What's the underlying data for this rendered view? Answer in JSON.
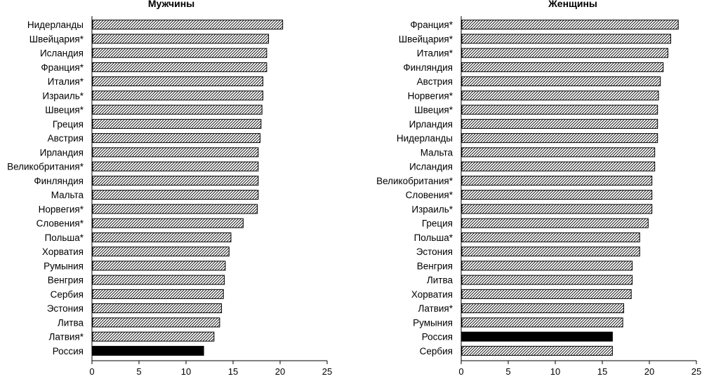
{
  "chart_data": [
    {
      "type": "bar",
      "orientation": "horizontal",
      "title": "Мужчины",
      "xlim": [
        0,
        25
      ],
      "xticks": [
        "0",
        "5",
        "10",
        "15",
        "20",
        "25"
      ],
      "grid": false,
      "categories": [
        "Нидерланды",
        "Швейцария*",
        "Исландия",
        "Франция*",
        "Италия*",
        "Израиль*",
        "Швеция*",
        "Греция",
        "Австрия",
        "Ирландия",
        "Великобритания*",
        "Финляндия",
        "Мальта",
        "Норвегия*",
        "Словения*",
        "Польша*",
        "Хорватия",
        "Румыния",
        "Венгрия",
        "Сербия",
        "Эстония",
        "Литва",
        "Латвия*",
        "Россия"
      ],
      "values": [
        20.2,
        18.7,
        18.5,
        18.5,
        18.1,
        18.1,
        18.0,
        17.9,
        17.8,
        17.6,
        17.6,
        17.6,
        17.6,
        17.5,
        16.0,
        14.7,
        14.5,
        14.1,
        14.0,
        13.9,
        13.7,
        13.5,
        12.9,
        11.8
      ],
      "highlight": "Россия",
      "colors": {
        "bar_fill": "hatched",
        "highlight_fill": "#000000"
      }
    },
    {
      "type": "bar",
      "orientation": "horizontal",
      "title": "Женщины",
      "xlim": [
        0,
        25
      ],
      "xticks": [
        "0",
        "5",
        "10",
        "15",
        "20",
        "25"
      ],
      "grid": false,
      "categories": [
        "Франция*",
        "Швейцария*",
        "Италия*",
        "Финляндия",
        "Австрия",
        "Норвегия*",
        "Швеция*",
        "Ирландия",
        "Нидерланды",
        "Мальта",
        "Исландия",
        "Великобритания*",
        "Словения*",
        "Израиль*",
        "Греция",
        "Польша*",
        "Эстония",
        "Венгрия",
        "Литва",
        "Хорватия",
        "Латвия*",
        "Румыния",
        "Россия",
        "Сербия"
      ],
      "values": [
        23.0,
        22.2,
        21.9,
        21.4,
        21.1,
        20.9,
        20.8,
        20.8,
        20.8,
        20.5,
        20.5,
        20.2,
        20.2,
        20.2,
        19.8,
        18.9,
        18.9,
        18.1,
        18.1,
        18.0,
        17.2,
        17.1,
        16.0,
        16.0
      ],
      "highlight": "Россия",
      "colors": {
        "bar_fill": "hatched",
        "highlight_fill": "#000000"
      }
    }
  ]
}
